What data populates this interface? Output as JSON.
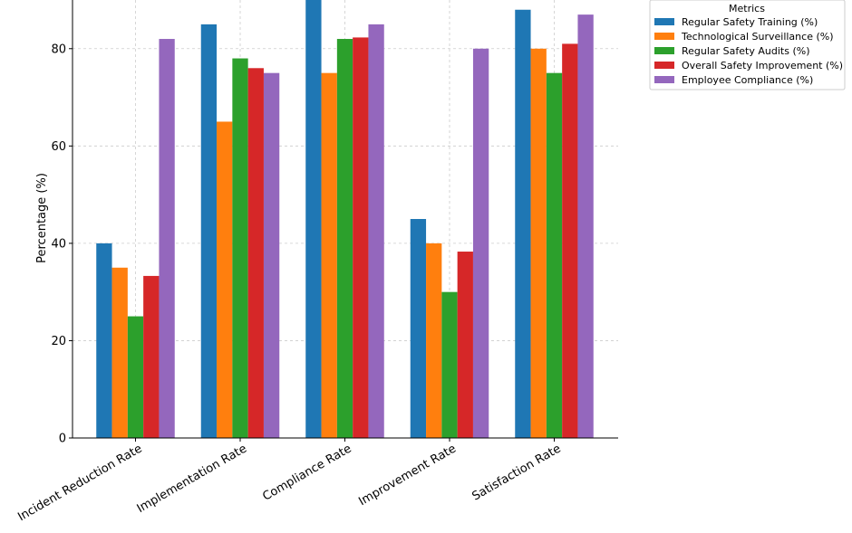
{
  "chart_data": {
    "type": "bar",
    "title": "",
    "xlabel": "",
    "ylabel": "Percentage (%)",
    "ylim": [
      0,
      90
    ],
    "yticks": [
      0,
      20,
      40,
      60,
      80
    ],
    "grid": true,
    "legend_title": "Metrics",
    "legend_placement": "outside-top-right",
    "categories": [
      "Incident Reduction Rate",
      "Implementation Rate",
      "Compliance Rate",
      "Improvement Rate",
      "Satisfaction Rate"
    ],
    "series": [
      {
        "name": "Regular Safety Training (%)",
        "color": "#1f77b4",
        "values": [
          40,
          85,
          90,
          45,
          88
        ]
      },
      {
        "name": "Technological Surveillance (%)",
        "color": "#ff7f0e",
        "values": [
          35,
          65,
          75,
          40,
          80
        ]
      },
      {
        "name": "Regular Safety Audits (%)",
        "color": "#2ca02c",
        "values": [
          25,
          78,
          82,
          30,
          75
        ]
      },
      {
        "name": "Overall Safety Improvement (%)",
        "color": "#d62728",
        "values": [
          33.3,
          76,
          82.3,
          38.3,
          81
        ]
      },
      {
        "name": "Employee Compliance (%)",
        "color": "#9467bd",
        "values": [
          82,
          75,
          85,
          80,
          87
        ]
      }
    ]
  }
}
